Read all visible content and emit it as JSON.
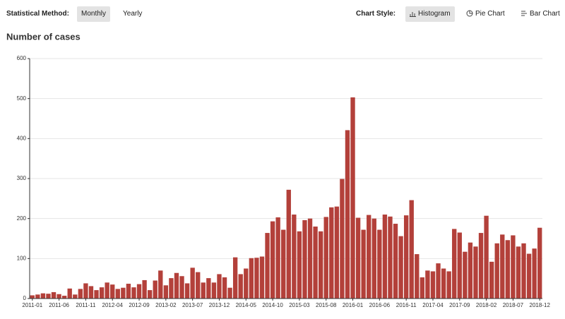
{
  "controls": {
    "method_label": "Statistical Method:",
    "method_options": [
      "Monthly",
      "Yearly"
    ],
    "style_label": "Chart Style:",
    "style_options": [
      "Histogram",
      "Pie Chart",
      "Bar Chart"
    ]
  },
  "chart_data": {
    "type": "bar",
    "title": "Number of cases",
    "categories": [
      "2011-01",
      null,
      null,
      null,
      null,
      "2011-06",
      null,
      null,
      null,
      null,
      "2011-11",
      null,
      null,
      null,
      null,
      "2012-04",
      null,
      null,
      null,
      null,
      "2012-09",
      null,
      null,
      null,
      null,
      "2013-02",
      null,
      null,
      null,
      null,
      "2013-07",
      null,
      null,
      null,
      null,
      "2013-12",
      null,
      null,
      null,
      null,
      "2014-05",
      null,
      null,
      null,
      null,
      "2014-10",
      null,
      null,
      null,
      null,
      "2015-03",
      null,
      null,
      null,
      null,
      "2015-08",
      null,
      null,
      null,
      null,
      "2016-01",
      null,
      null,
      null,
      null,
      "2016-06",
      null,
      null,
      null,
      null,
      "2016-11",
      null,
      null,
      null,
      null,
      "2017-04",
      null,
      null,
      null,
      null,
      "2017-09",
      null,
      null,
      null,
      null,
      "2018-02",
      null,
      null,
      null,
      null,
      "2018-07",
      null,
      null,
      null,
      null,
      "2018-12"
    ],
    "values": [
      8,
      10,
      13,
      12,
      16,
      11,
      7,
      25,
      10,
      24,
      38,
      31,
      21,
      28,
      40,
      35,
      24,
      27,
      37,
      28,
      36,
      46,
      21,
      45,
      70,
      33,
      51,
      64,
      56,
      38,
      77,
      66,
      40,
      51,
      40,
      61,
      53,
      27,
      103,
      61,
      75,
      101,
      102,
      105,
      164,
      193,
      203,
      172,
      272,
      210,
      168,
      196,
      200,
      180,
      168,
      204,
      228,
      230,
      299,
      421,
      503,
      202,
      172,
      209,
      200,
      172,
      210,
      205,
      187,
      156,
      208,
      246,
      111,
      53,
      70,
      68,
      88,
      75,
      68,
      174,
      165,
      117,
      140,
      130,
      164,
      207,
      92,
      138,
      160,
      146,
      158,
      130,
      138,
      112,
      125,
      177
    ],
    "color": "#b3403a",
    "ylim": [
      0,
      600
    ],
    "yticks": [
      0,
      100,
      200,
      300,
      400,
      500,
      600
    ],
    "grid": true
  }
}
